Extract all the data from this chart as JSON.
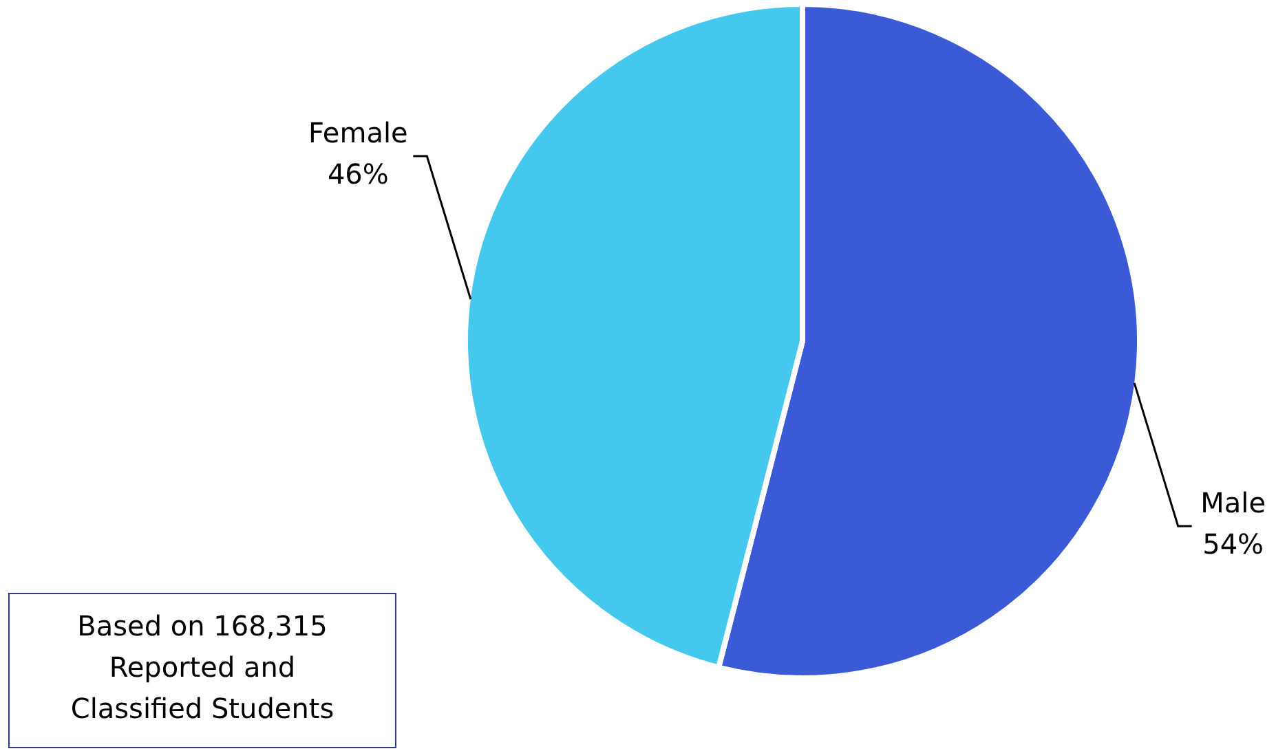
{
  "chart_data": {
    "type": "pie",
    "categories": [
      "Male",
      "Female"
    ],
    "values": [
      54,
      46
    ],
    "colors": [
      "#3a5ad6",
      "#45c8ee"
    ],
    "value_labels": [
      "54%",
      "46%"
    ],
    "legend": false,
    "annotations": [
      "Based on 168,315 Reported and Classified Students"
    ]
  }
}
